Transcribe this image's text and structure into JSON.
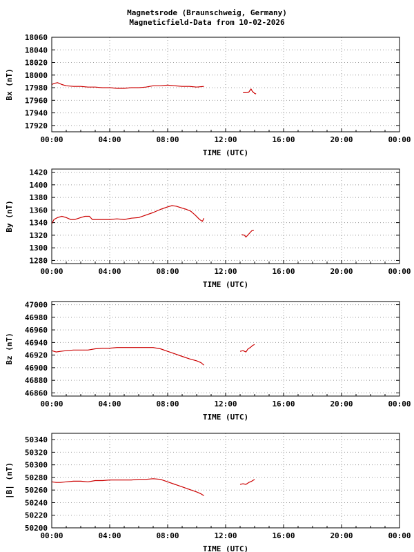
{
  "title": {
    "line1": "Magnetsrode (Braunschweig, Germany)",
    "line2": "Magneticfield-Data from 10-02-2026"
  },
  "chart_data": [
    {
      "type": "line",
      "ylabel": "Bx (nT)",
      "xlabel": "TIME (UTC)",
      "xlim": [
        0,
        24
      ],
      "ylim": [
        17910,
        18060
      ],
      "yticks": [
        17920,
        17940,
        17960,
        17980,
        18000,
        18020,
        18040,
        18060
      ],
      "xticks": [
        "00:00",
        "04:00",
        "08:00",
        "12:00",
        "16:00",
        "20:00",
        "00:00"
      ],
      "grid": true,
      "color": "#cc0000",
      "segments": [
        [
          [
            0,
            17985
          ],
          [
            0.2,
            17987
          ],
          [
            0.4,
            17988
          ],
          [
            0.7,
            17985
          ],
          [
            1.0,
            17983
          ],
          [
            1.5,
            17982
          ],
          [
            2.0,
            17982
          ],
          [
            2.5,
            17981
          ],
          [
            3.0,
            17981
          ],
          [
            3.5,
            17980
          ],
          [
            4.0,
            17980
          ],
          [
            4.5,
            17979
          ],
          [
            5.0,
            17979
          ],
          [
            5.5,
            17980
          ],
          [
            6.0,
            17980
          ],
          [
            6.5,
            17981
          ],
          [
            7.0,
            17983
          ],
          [
            7.5,
            17983
          ],
          [
            8.0,
            17984
          ],
          [
            8.5,
            17983
          ],
          [
            9.0,
            17982
          ],
          [
            9.5,
            17982
          ],
          [
            10.0,
            17981
          ],
          [
            10.5,
            17982
          ]
        ],
        [
          [
            13.2,
            17972
          ],
          [
            13.4,
            17972
          ],
          [
            13.6,
            17973
          ],
          [
            13.75,
            17978
          ],
          [
            13.85,
            17974
          ],
          [
            14.0,
            17971
          ],
          [
            14.1,
            17970
          ]
        ]
      ]
    },
    {
      "type": "line",
      "ylabel": "By (nT)",
      "xlabel": "TIME (UTC)",
      "xlim": [
        0,
        24
      ],
      "ylim": [
        1275,
        1425
      ],
      "yticks": [
        1280,
        1300,
        1320,
        1340,
        1360,
        1380,
        1400,
        1420
      ],
      "xticks": [
        "00:00",
        "04:00",
        "08:00",
        "12:00",
        "16:00",
        "20:00",
        "00:00"
      ],
      "grid": true,
      "color": "#cc0000",
      "segments": [
        [
          [
            0,
            1338
          ],
          [
            0.15,
            1345
          ],
          [
            0.4,
            1348
          ],
          [
            0.7,
            1350
          ],
          [
            1.0,
            1348
          ],
          [
            1.3,
            1345
          ],
          [
            1.6,
            1345
          ],
          [
            2.0,
            1348
          ],
          [
            2.3,
            1350
          ],
          [
            2.6,
            1350
          ],
          [
            2.8,
            1345
          ],
          [
            3.0,
            1345
          ],
          [
            3.5,
            1345
          ],
          [
            4.0,
            1345
          ],
          [
            4.5,
            1346
          ],
          [
            5.0,
            1345
          ],
          [
            5.5,
            1347
          ],
          [
            6.0,
            1348
          ],
          [
            6.5,
            1352
          ],
          [
            7.0,
            1356
          ],
          [
            7.5,
            1361
          ],
          [
            8.0,
            1365
          ],
          [
            8.3,
            1367
          ],
          [
            8.6,
            1366
          ],
          [
            9.0,
            1363
          ],
          [
            9.3,
            1361
          ],
          [
            9.6,
            1358
          ],
          [
            9.9,
            1352
          ],
          [
            10.2,
            1345
          ],
          [
            10.4,
            1342
          ],
          [
            10.5,
            1347
          ]
        ],
        [
          [
            13.1,
            1321
          ],
          [
            13.3,
            1320
          ],
          [
            13.4,
            1317
          ],
          [
            13.6,
            1322
          ],
          [
            13.8,
            1327
          ],
          [
            13.95,
            1328
          ]
        ]
      ]
    },
    {
      "type": "line",
      "ylabel": "Bz (nT)",
      "xlabel": "TIME (UTC)",
      "xlim": [
        0,
        24
      ],
      "ylim": [
        46855,
        47005
      ],
      "yticks": [
        46860,
        46880,
        46900,
        46920,
        46940,
        46960,
        46980,
        47000
      ],
      "xticks": [
        "00:00",
        "04:00",
        "08:00",
        "12:00",
        "16:00",
        "20:00",
        "00:00"
      ],
      "grid": true,
      "color": "#cc0000",
      "segments": [
        [
          [
            0,
            46927
          ],
          [
            0.3,
            46925
          ],
          [
            0.6,
            46926
          ],
          [
            1.0,
            46927
          ],
          [
            1.5,
            46928
          ],
          [
            2.0,
            46928
          ],
          [
            2.5,
            46928
          ],
          [
            3.0,
            46930
          ],
          [
            3.5,
            46931
          ],
          [
            4.0,
            46931
          ],
          [
            4.5,
            46932
          ],
          [
            5.0,
            46932
          ],
          [
            5.5,
            46932
          ],
          [
            6.0,
            46932
          ],
          [
            6.5,
            46932
          ],
          [
            7.0,
            46932
          ],
          [
            7.5,
            46930
          ],
          [
            8.0,
            46926
          ],
          [
            8.5,
            46922
          ],
          [
            9.0,
            46918
          ],
          [
            9.5,
            46914
          ],
          [
            10.0,
            46911
          ],
          [
            10.3,
            46908
          ],
          [
            10.5,
            46904
          ]
        ],
        [
          [
            13.0,
            46926
          ],
          [
            13.2,
            46927
          ],
          [
            13.4,
            46925
          ],
          [
            13.55,
            46930
          ],
          [
            13.7,
            46932
          ],
          [
            13.85,
            46935
          ],
          [
            14.0,
            46937
          ]
        ]
      ]
    },
    {
      "type": "line",
      "ylabel": "|B| (nT)",
      "xlabel": "TIME (UTC)",
      "xlim": [
        0,
        24
      ],
      "ylim": [
        50200,
        50350
      ],
      "yticks": [
        50200,
        50220,
        50240,
        50260,
        50280,
        50300,
        50320,
        50340
      ],
      "xticks": [
        "00:00",
        "04:00",
        "08:00",
        "12:00",
        "16:00",
        "20:00",
        "00:00"
      ],
      "grid": true,
      "color": "#cc0000",
      "segments": [
        [
          [
            0,
            50273
          ],
          [
            0.3,
            50272
          ],
          [
            0.6,
            50272
          ],
          [
            1.0,
            50273
          ],
          [
            1.5,
            50274
          ],
          [
            2.0,
            50274
          ],
          [
            2.5,
            50273
          ],
          [
            3.0,
            50275
          ],
          [
            3.5,
            50275
          ],
          [
            4.0,
            50276
          ],
          [
            4.5,
            50276
          ],
          [
            5.0,
            50276
          ],
          [
            5.5,
            50276
          ],
          [
            6.0,
            50277
          ],
          [
            6.5,
            50277
          ],
          [
            7.0,
            50278
          ],
          [
            7.5,
            50277
          ],
          [
            8.0,
            50273
          ],
          [
            8.5,
            50269
          ],
          [
            9.0,
            50265
          ],
          [
            9.5,
            50261
          ],
          [
            10.0,
            50257
          ],
          [
            10.3,
            50254
          ],
          [
            10.5,
            50251
          ]
        ],
        [
          [
            13.0,
            50269
          ],
          [
            13.2,
            50270
          ],
          [
            13.4,
            50269
          ],
          [
            13.6,
            50272
          ],
          [
            13.8,
            50274
          ],
          [
            14.0,
            50277
          ]
        ]
      ]
    }
  ]
}
